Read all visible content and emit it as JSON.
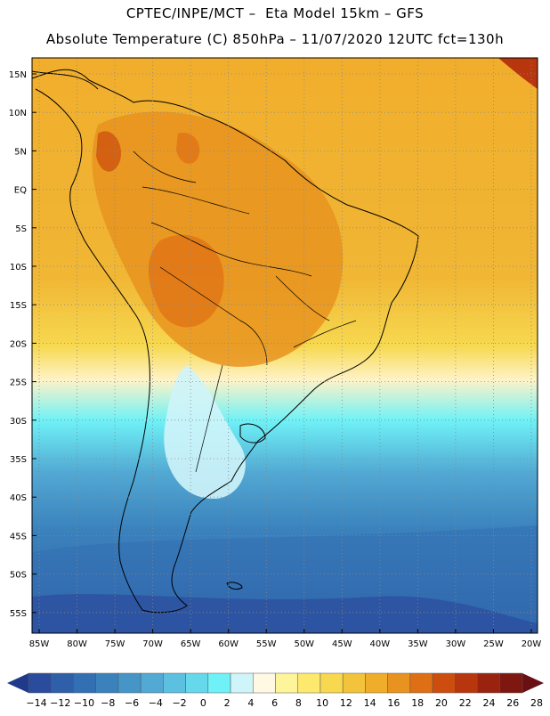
{
  "header": {
    "line1": "CPTEC/INPE/MCT –  Eta Model 15km – GFS",
    "line2": "Absolute Temperature (C) 850hPa – 11/07/2020 12UTC fct=130h"
  },
  "map": {
    "lat_labels": [
      "15N",
      "10N",
      "5N",
      "EQ",
      "5S",
      "10S",
      "15S",
      "20S",
      "25S",
      "30S",
      "35S",
      "40S",
      "45S",
      "50S",
      "55S"
    ],
    "lon_labels": [
      "85W",
      "80W",
      "75W",
      "70W",
      "65W",
      "60W",
      "55W",
      "50W",
      "45W",
      "40W",
      "35W",
      "30W",
      "25W",
      "20W"
    ]
  },
  "colorbar": {
    "tick_labels": [
      "-14",
      "-12",
      "-10",
      "-8",
      "-6",
      "-4",
      "-2",
      "0",
      "2",
      "4",
      "6",
      "8",
      "10",
      "12",
      "14",
      "16",
      "18",
      "20",
      "22",
      "24",
      "26",
      "28"
    ],
    "colors": [
      "#2b4c9c",
      "#2f5fa8",
      "#3370b3",
      "#3b82bd",
      "#4595c6",
      "#52a9d3",
      "#5cc1e0",
      "#66d8ec",
      "#6ff2f7",
      "#cff4f9",
      "#fff8e3",
      "#fef49a",
      "#fce96e",
      "#f7d84f",
      "#f3c33b",
      "#f0ad2a",
      "#e8931f",
      "#de6f14",
      "#cc4d0e",
      "#b8360e",
      "#9a2310",
      "#7e1710"
    ],
    "low_arrow_color": "#1f3a8a",
    "high_arrow_color": "#6a0f14"
  }
}
